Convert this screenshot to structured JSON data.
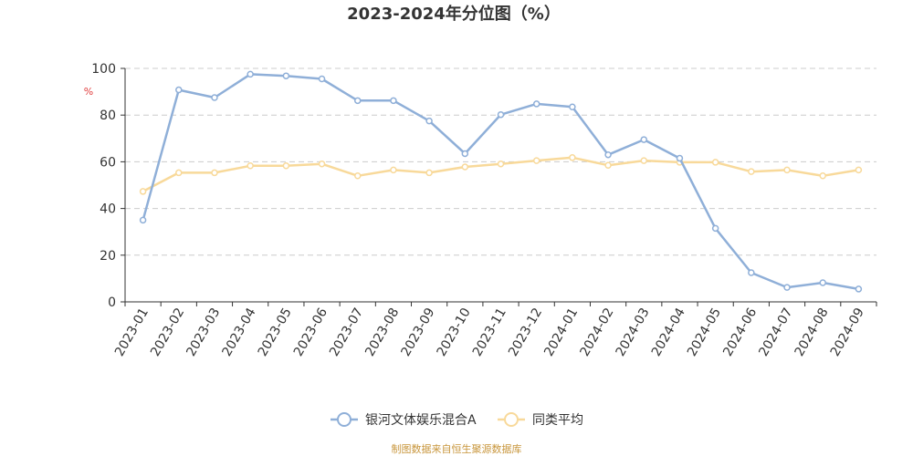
{
  "chart_data": {
    "type": "line",
    "title": "2023-2024年分位图（%）",
    "ylabel": "%",
    "ylim": [
      0,
      100
    ],
    "yticks": [
      0,
      20,
      40,
      60,
      80,
      100
    ],
    "grid": true,
    "legend_position": "bottom",
    "categories": [
      "2023-01",
      "2023-02",
      "2023-03",
      "2023-04",
      "2023-05",
      "2023-06",
      "2023-07",
      "2023-08",
      "2023-09",
      "2023-10",
      "2023-11",
      "2023-12",
      "2024-01",
      "2024-02",
      "2024-03",
      "2024-04",
      "2024-05",
      "2024-06",
      "2024-07",
      "2024-08",
      "2024-09"
    ],
    "series": [
      {
        "name": "银河文体娱乐混合A",
        "color": "#8fafd8",
        "values": [
          35,
          90.8,
          87.5,
          97.5,
          96.8,
          95.5,
          86.2,
          86.2,
          77.5,
          63.5,
          80.2,
          84.8,
          83.5,
          63,
          69.5,
          61.5,
          31.5,
          12.5,
          6.2,
          8.2,
          5.5
        ]
      },
      {
        "name": "同类平均",
        "color": "#f8d99a",
        "values": [
          47.3,
          55.3,
          55.3,
          58.3,
          58.3,
          59.1,
          54,
          56.5,
          55.3,
          57.8,
          59.1,
          60.5,
          61.8,
          58.5,
          60.5,
          59.8,
          59.8,
          55.8,
          56.5,
          54,
          56.5
        ]
      }
    ]
  },
  "source": {
    "text": "制图数据来自恒生聚源数据库",
    "color": "#c8963c"
  },
  "colors": {
    "axis": "#333333",
    "grid": "#cccccc",
    "unit": "#e03c3c"
  }
}
